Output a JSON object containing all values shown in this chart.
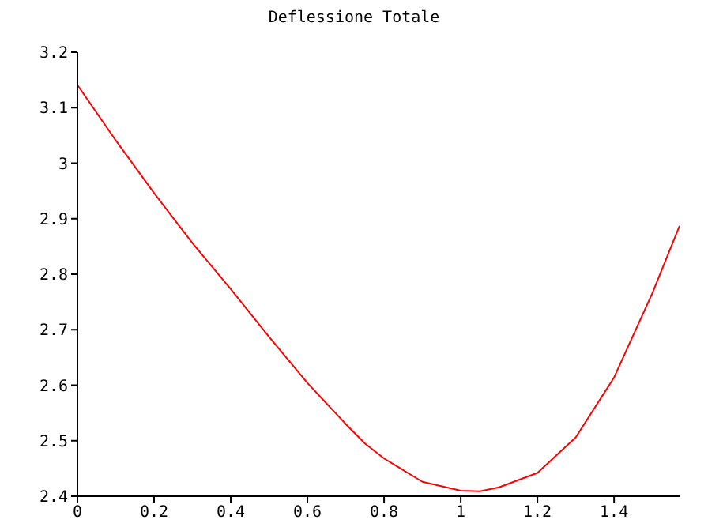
{
  "chart_data": {
    "type": "line",
    "title": "Deflessione Totale",
    "x": [
      0,
      0.1,
      0.2,
      0.3,
      0.4,
      0.5,
      0.6,
      0.7,
      0.75,
      0.8,
      0.9,
      1.0,
      1.05,
      1.1,
      1.2,
      1.3,
      1.4,
      1.5,
      1.5708
    ],
    "series": [
      {
        "color": "#ff0000",
        "values": [
          3.141,
          3.041,
          2.946,
          2.856,
          2.773,
          2.687,
          2.604,
          2.53,
          2.495,
          2.468,
          2.426,
          2.41,
          2.409,
          2.416,
          2.442,
          2.506,
          2.614,
          2.766,
          2.887
        ]
      }
    ],
    "xlim": [
      0,
      1.5708
    ],
    "xticks": [
      0,
      0.2,
      0.4,
      0.6,
      0.8,
      1,
      1.2,
      1.4
    ],
    "ylim": [
      2.4,
      3.2
    ],
    "yticks": [
      2.4,
      2.5,
      2.6,
      2.7,
      2.8,
      2.9,
      3,
      3.1,
      3.2
    ],
    "grid": false,
    "legend": false,
    "marker": "none",
    "line_style": "solid"
  }
}
